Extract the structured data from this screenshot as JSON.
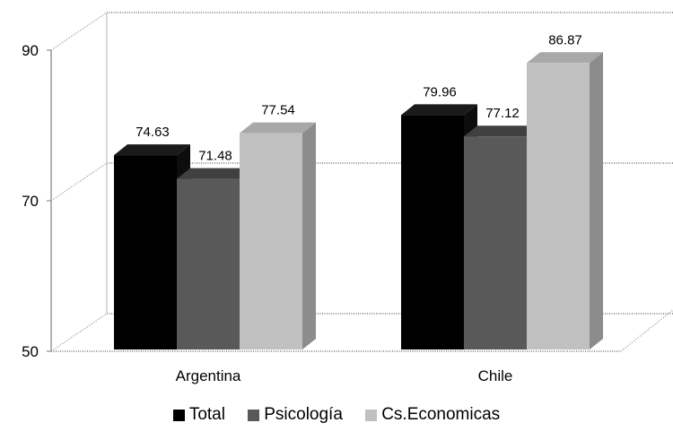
{
  "chart_data": {
    "type": "bar",
    "title": "",
    "xlabel": "",
    "ylabel": "",
    "categories": [
      "Argentina",
      "Chile"
    ],
    "series": [
      {
        "name": "Total",
        "values": [
          74.63,
          79.96
        ],
        "color": "#000000"
      },
      {
        "name": "Psicología",
        "values": [
          71.48,
          77.12
        ],
        "color": "#595959"
      },
      {
        "name": "Cs.Economicas",
        "values": [
          77.54,
          86.87
        ],
        "color": "#c0c0c0"
      }
    ],
    "data_labels": [
      "74.63",
      "71.48",
      "77.54",
      "79.96",
      "77.12",
      "86.87"
    ],
    "ylim": [
      50,
      90
    ],
    "yticks": [
      50,
      70,
      90
    ],
    "ytick_labels": [
      "50",
      "70",
      "90"
    ],
    "grid": true,
    "legend_position": "bottom",
    "style": "3d-clustered-column"
  }
}
